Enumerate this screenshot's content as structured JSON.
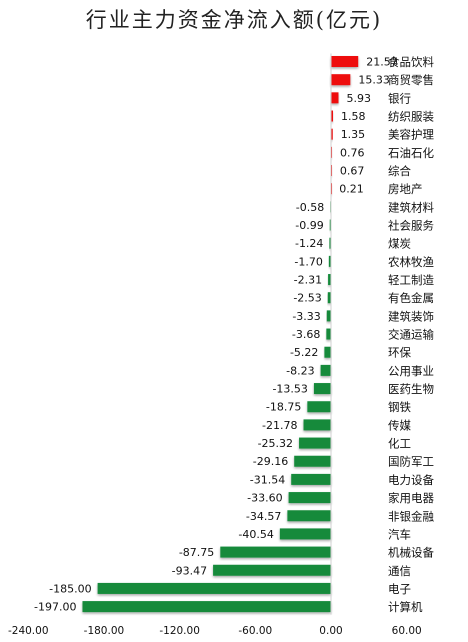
{
  "chart_data": {
    "type": "bar",
    "orientation": "horizontal",
    "title": "行业主力资金净流入额(亿元)",
    "categories": [
      "食品饮料",
      "商贸零售",
      "银行",
      "纺织服装",
      "美容护理",
      "石油石化",
      "综合",
      "房地产",
      "建筑材料",
      "社会服务",
      "煤炭",
      "农林牧渔",
      "轻工制造",
      "有色金属",
      "建筑装饰",
      "交通运输",
      "环保",
      "公用事业",
      "医药生物",
      "钢铁",
      "传媒",
      "化工",
      "国防军工",
      "电力设备",
      "家用电器",
      "非银金融",
      "汽车",
      "机械设备",
      "通信",
      "电子",
      "计算机"
    ],
    "values": [
      21.57,
      15.33,
      5.93,
      1.58,
      1.35,
      0.76,
      0.67,
      0.21,
      -0.58,
      -0.99,
      -1.24,
      -1.7,
      -2.31,
      -2.53,
      -3.33,
      -3.68,
      -5.22,
      -8.23,
      -13.53,
      -18.75,
      -21.78,
      -25.32,
      -29.16,
      -31.54,
      -33.6,
      -34.57,
      -40.54,
      -87.75,
      -93.47,
      -185.0,
      -197.0
    ],
    "value_labels": [
      "21.57",
      "15.33",
      "5.93",
      "1.58",
      "1.35",
      "0.76",
      "0.67",
      "0.21",
      "-0.58",
      "-0.99",
      "-1.24",
      "-1.70",
      "-2.31",
      "-2.53",
      "-3.33",
      "-3.68",
      "-5.22",
      "-8.23",
      "-13.53",
      "-18.75",
      "-21.78",
      "-25.32",
      "-29.16",
      "-31.54",
      "-33.60",
      "-34.57",
      "-40.54",
      "-87.75",
      "-93.47",
      "-185.00",
      "-197.00"
    ],
    "xlim": [
      -240,
      60
    ],
    "xticks": [
      -240,
      -180,
      -120,
      -60,
      0,
      60
    ],
    "xtick_labels": [
      "-240.00",
      "-180.00",
      "-120.00",
      "-60.00",
      "0.00",
      "60.00"
    ],
    "colors": {
      "positive": "#ee1111",
      "negative": "#138a3a"
    },
    "grid": false,
    "legend": "none"
  }
}
